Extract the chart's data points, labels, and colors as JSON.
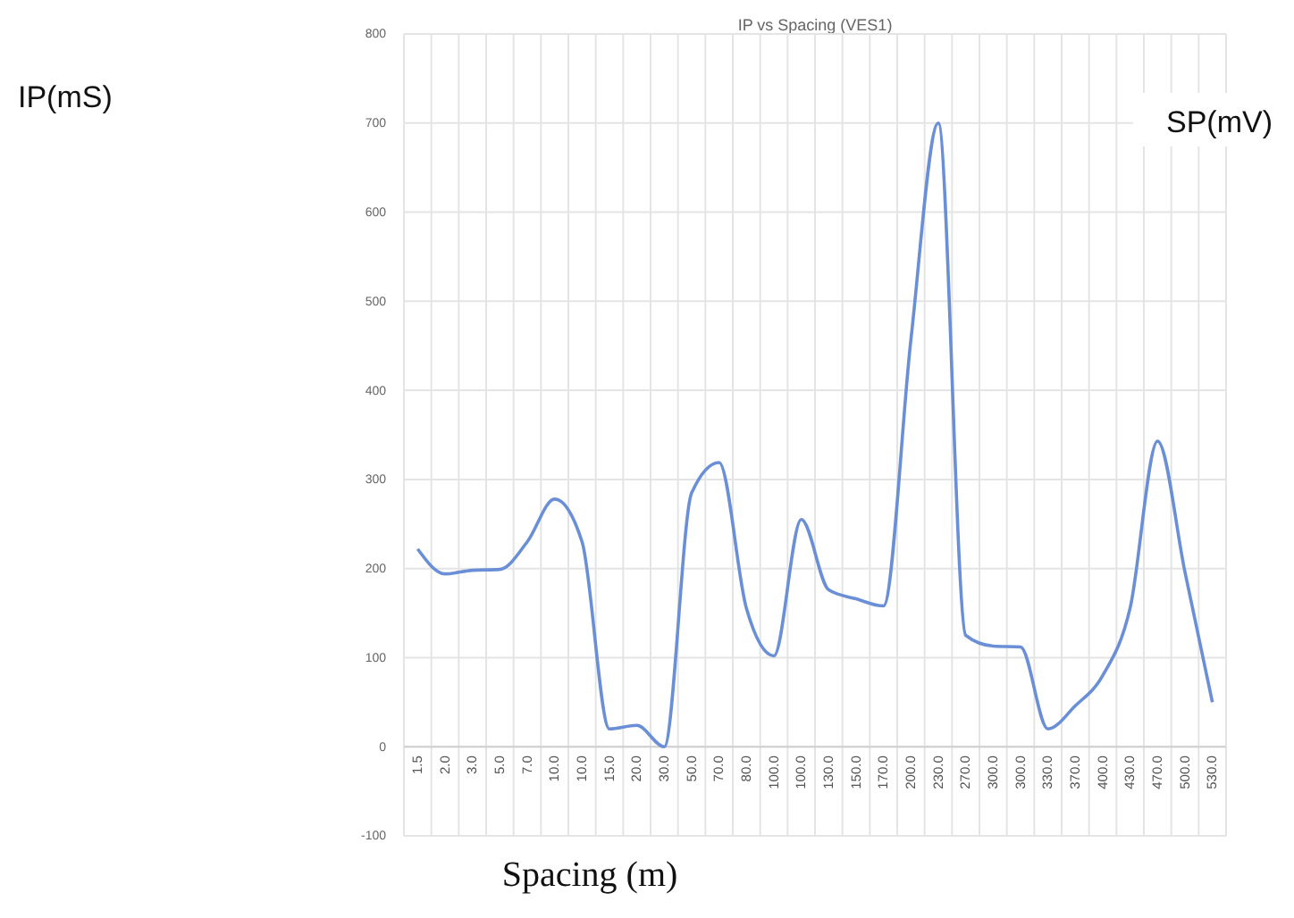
{
  "chart_data": {
    "type": "line",
    "title": "IP vs Spacing (VES1)",
    "xlabel": "Spacing (m)",
    "annotations": [
      "IP(mS)",
      "SP(mV)"
    ],
    "categories": [
      "1.5",
      "2.0",
      "3.0",
      "5.0",
      "7.0",
      "10.0",
      "10.0",
      "15.0",
      "20.0",
      "30.0",
      "50.0",
      "70.0",
      "80.0",
      "100.0",
      "100.0",
      "130.0",
      "150.0",
      "170.0",
      "200.0",
      "230.0",
      "270.0",
      "300.0",
      "300.0",
      "330.0",
      "370.0",
      "400.0",
      "430.0",
      "470.0",
      "500.0",
      "530.0"
    ],
    "series": [
      {
        "color": "#6a8fd6",
        "values": [
          222,
          194,
          198,
          199,
          230,
          278,
          230,
          20,
          24,
          0,
          285,
          319,
          155,
          102,
          255,
          176,
          166,
          158,
          457,
          700,
          125,
          113,
          112,
          20,
          46,
          80,
          156,
          343,
          196,
          50
        ]
      }
    ],
    "ylim": [
      -100,
      800
    ],
    "yticks": [
      -100,
      0,
      100,
      200,
      300,
      400,
      500,
      600,
      700,
      800
    ],
    "grid": true,
    "marker": "none",
    "line_style": "solid"
  }
}
